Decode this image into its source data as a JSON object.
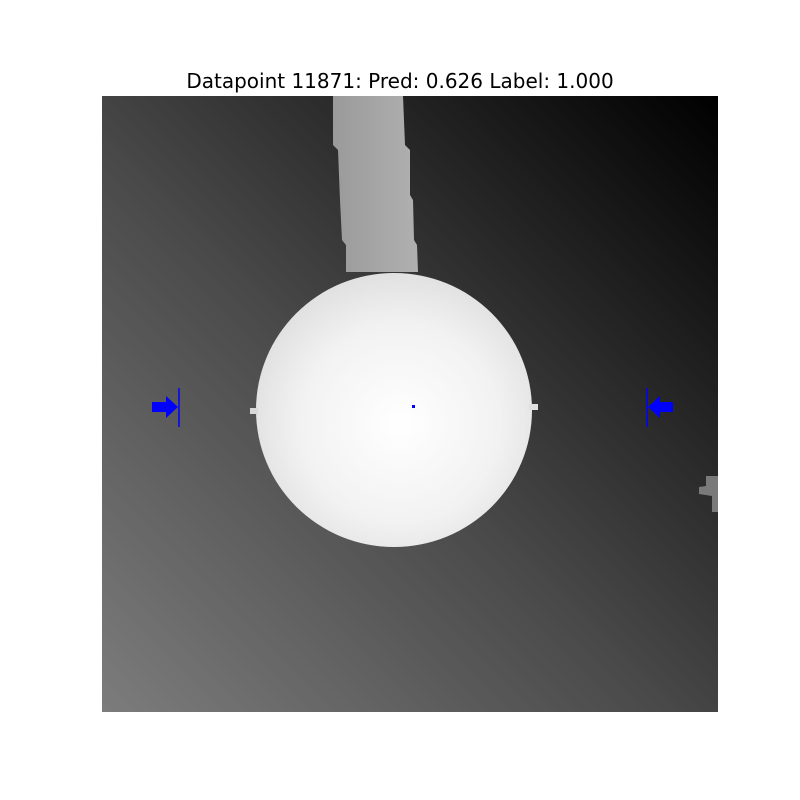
{
  "title": "Datapoint 11871: Pred: 0.626 Label: 1.000",
  "colors": {
    "marker": "#0000ff",
    "background_light": "#7a7a7a",
    "background_dark": "#000000",
    "object": "#ffffff",
    "stem": "#a0a0a0"
  },
  "markers": {
    "left_arrow": "arrow-right-icon",
    "right_arrow": "arrow-left-icon",
    "center_point": "dot"
  }
}
